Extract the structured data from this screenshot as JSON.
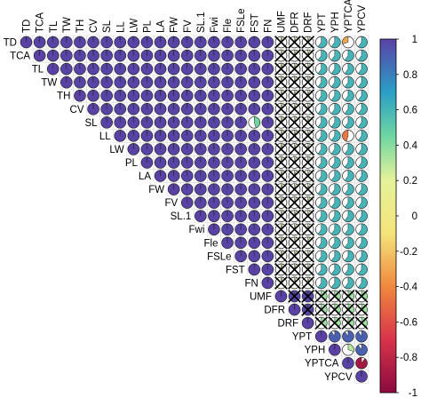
{
  "chart_data": {
    "type": "heatmap",
    "subtype": "correlation-matrix-pie-upper",
    "variables": [
      "TD",
      "TCA",
      "TL",
      "TW",
      "TH",
      "CV",
      "SL",
      "LL",
      "LW",
      "PL",
      "LA",
      "FW",
      "FV",
      "SL.1",
      "Fwi",
      "Fle",
      "FSLe",
      "FST",
      "FN",
      "UMF",
      "DFR",
      "DRF",
      "YPT",
      "YPH",
      "YPTCA",
      "YPCV"
    ],
    "clusters": {
      "A": [
        "TD",
        "TCA",
        "TL",
        "TW",
        "TH",
        "CV",
        "SL",
        "LL",
        "LW",
        "PL",
        "LA",
        "FW",
        "FV",
        "SL.1",
        "Fwi",
        "Fle",
        "FSLe",
        "FST",
        "FN"
      ],
      "B": [
        "UMF",
        "DFR",
        "DRF"
      ],
      "C": [
        "YPT",
        "YPH",
        "YPTCA",
        "YPCV"
      ]
    },
    "correlation_rules": {
      "within_A": 0.99,
      "within_B": 0.98,
      "within_C": 0.9,
      "A_B": 0.05,
      "A_C": 0.6,
      "B_C": 0.35,
      "diagonal": 1.0
    },
    "overrides": [
      {
        "row": "SL",
        "col": "FST",
        "value": 0.45
      },
      {
        "row": "LL",
        "col": "YPTCA",
        "value": -0.45
      },
      {
        "row": "TD",
        "col": "YPTCA",
        "value": -0.3
      },
      {
        "row": "YPH",
        "col": "YPTCA",
        "value": 0.3
      },
      {
        "row": "YPTCA",
        "col": "YPCV",
        "value": -0.9
      }
    ],
    "insignificant_marker": "cross",
    "insignificant_pairs": "A_B, B_B (off-diagonal), B_C",
    "colorbar": {
      "min": -1,
      "max": 1,
      "ticks": [
        "-1",
        "-0.8",
        "-0.6",
        "-0.4",
        "-0.2",
        "0",
        "0.2",
        "0.4",
        "0.6",
        "0.8",
        "1"
      ],
      "colors": [
        "#67001F",
        "#B2182B",
        "#D6604D",
        "#F4A582",
        "#FDDBC7",
        "#F7F7F7",
        "#D1E5F0",
        "#92C5DE",
        "#4393C3",
        "#2166AC",
        "#053061"
      ],
      "palette_stops": [
        {
          "v": -1.0,
          "color": "#8b0a3e"
        },
        {
          "v": -0.7,
          "color": "#d8334a"
        },
        {
          "v": -0.4,
          "color": "#f0883e"
        },
        {
          "v": -0.1,
          "color": "#f4e47a"
        },
        {
          "v": 0.2,
          "color": "#e6f29a"
        },
        {
          "v": 0.45,
          "color": "#6fd6a2"
        },
        {
          "v": 0.7,
          "color": "#2a9fc6"
        },
        {
          "v": 1.0,
          "color": "#5a41a6"
        }
      ]
    },
    "xlabel": "",
    "ylabel": "",
    "title": "",
    "legend_position": "right"
  }
}
